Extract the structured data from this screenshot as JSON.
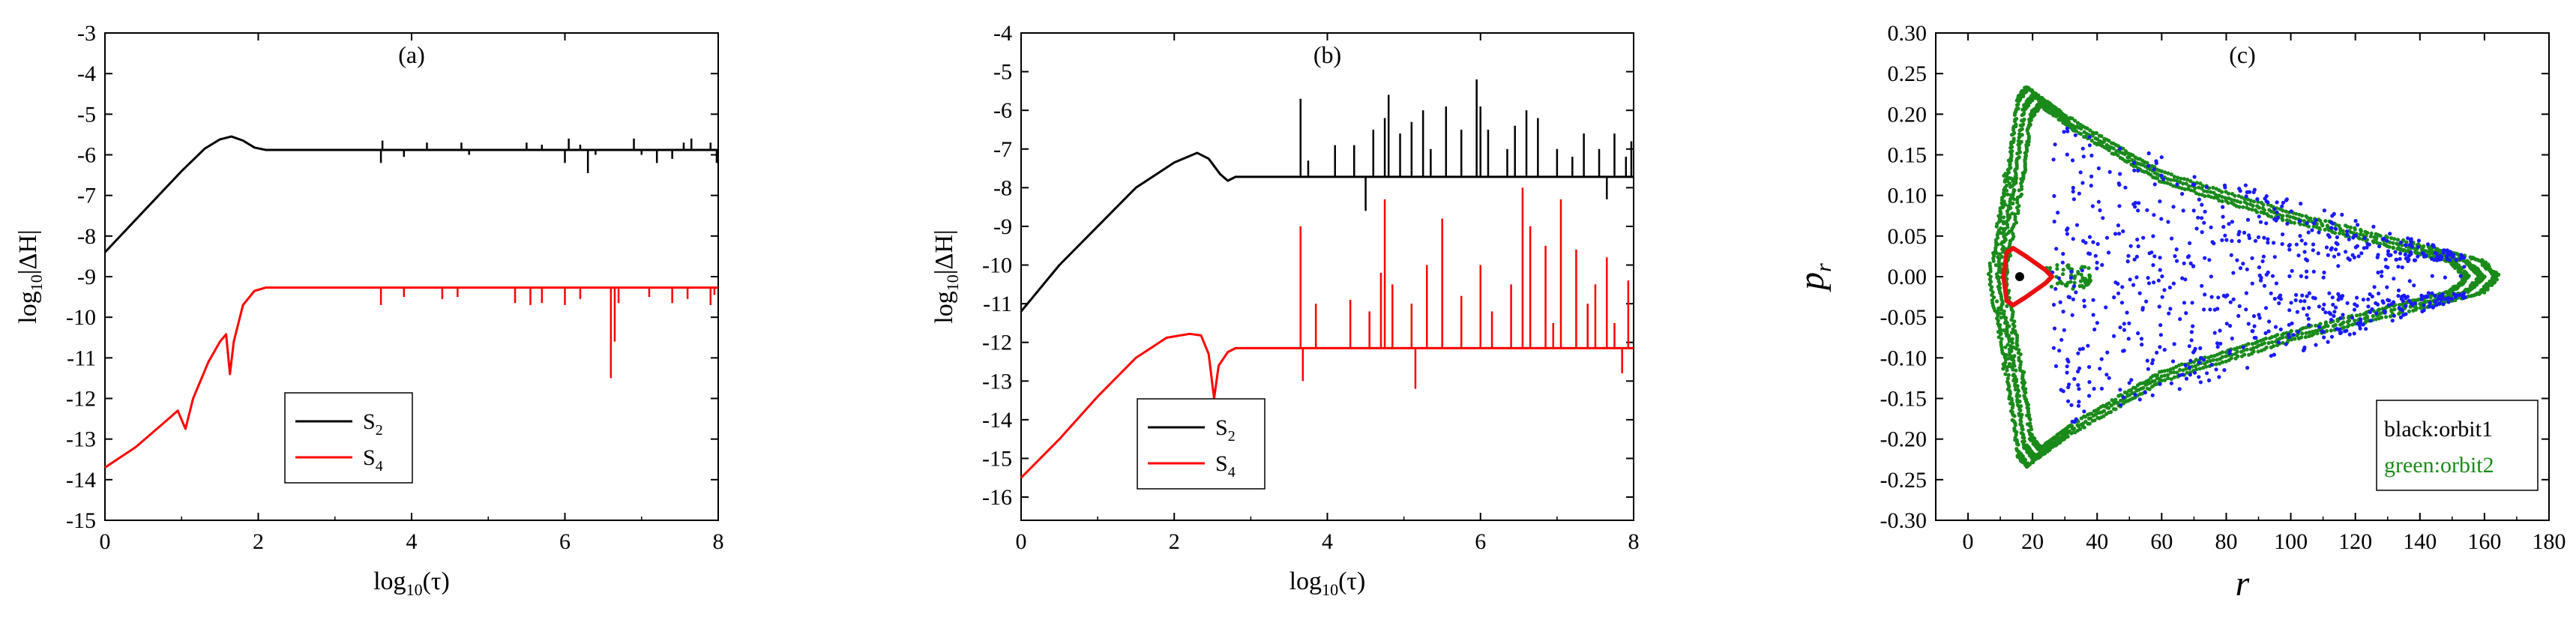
{
  "chart_data": [
    {
      "type": "line",
      "panel_label": "(a)",
      "xlabel": "log10(τ)",
      "ylabel": "log10|ΔH|",
      "xlim": [
        0,
        8
      ],
      "ylim": [
        -15,
        -3
      ],
      "xticks": [
        0,
        2,
        4,
        6,
        8
      ],
      "yticks": [
        -15,
        -14,
        -13,
        -12,
        -11,
        -10,
        -9,
        -8,
        -7,
        -6,
        -5,
        -4,
        -3
      ],
      "legend_position": "lower-left",
      "series": [
        {
          "name": "S2",
          "color": "#000000",
          "points": [
            [
              0,
              -8.4
            ],
            [
              0.5,
              -7.4
            ],
            [
              1.0,
              -6.4
            ],
            [
              1.3,
              -5.85
            ],
            [
              1.5,
              -5.62
            ],
            [
              1.65,
              -5.55
            ],
            [
              1.8,
              -5.65
            ],
            [
              1.95,
              -5.82
            ],
            [
              2.1,
              -5.88
            ],
            [
              8,
              -5.88
            ]
          ],
          "spikes": [
            [
              3.6,
              -6.2
            ],
            [
              3.62,
              -5.65
            ],
            [
              3.9,
              -6.05
            ],
            [
              4.2,
              -5.7
            ],
            [
              4.65,
              -5.7
            ],
            [
              4.75,
              -6.0
            ],
            [
              5.5,
              -5.7
            ],
            [
              5.7,
              -5.75
            ],
            [
              6.0,
              -6.2
            ],
            [
              6.05,
              -5.6
            ],
            [
              6.2,
              -5.75
            ],
            [
              6.3,
              -6.45
            ],
            [
              6.4,
              -6.0
            ],
            [
              6.9,
              -5.6
            ],
            [
              7.0,
              -6.0
            ],
            [
              7.2,
              -6.2
            ],
            [
              7.4,
              -6.1
            ],
            [
              7.55,
              -5.7
            ],
            [
              7.65,
              -5.6
            ],
            [
              7.9,
              -5.7
            ],
            [
              7.98,
              -6.2
            ]
          ]
        },
        {
          "name": "S4",
          "color": "#ff0000",
          "points": [
            [
              0,
              -13.7
            ],
            [
              0.4,
              -13.2
            ],
            [
              0.8,
              -12.55
            ],
            [
              0.95,
              -12.3
            ],
            [
              1.05,
              -12.75
            ],
            [
              1.15,
              -12.0
            ],
            [
              1.35,
              -11.1
            ],
            [
              1.5,
              -10.6
            ],
            [
              1.58,
              -10.42
            ],
            [
              1.63,
              -11.4
            ],
            [
              1.68,
              -10.6
            ],
            [
              1.8,
              -9.7
            ],
            [
              1.95,
              -9.35
            ],
            [
              2.1,
              -9.27
            ],
            [
              8,
              -9.27
            ]
          ],
          "spikes": [
            [
              3.6,
              -9.7
            ],
            [
              3.9,
              -9.5
            ],
            [
              4.4,
              -9.55
            ],
            [
              4.6,
              -9.5
            ],
            [
              5.35,
              -9.65
            ],
            [
              5.55,
              -9.7
            ],
            [
              5.7,
              -9.65
            ],
            [
              6.0,
              -9.7
            ],
            [
              6.2,
              -9.55
            ],
            [
              6.6,
              -11.5
            ],
            [
              6.65,
              -10.6
            ],
            [
              6.7,
              -9.65
            ],
            [
              7.1,
              -9.5
            ],
            [
              7.4,
              -9.65
            ],
            [
              7.6,
              -9.55
            ],
            [
              7.9,
              -9.7
            ],
            [
              7.95,
              -9.45
            ]
          ]
        }
      ]
    },
    {
      "type": "line",
      "panel_label": "(b)",
      "xlabel": "log10(τ)",
      "ylabel": "log10|ΔH|",
      "xlim": [
        0,
        8
      ],
      "ylim": [
        -16.6,
        -4
      ],
      "xticks": [
        0,
        2,
        4,
        6,
        8
      ],
      "yticks": [
        -16,
        -15,
        -14,
        -13,
        -12,
        -11,
        -10,
        -9,
        -8,
        -7,
        -6,
        -5,
        -4
      ],
      "legend_position": "lower-left",
      "series": [
        {
          "name": "S2",
          "color": "#000000",
          "points": [
            [
              0,
              -11.2
            ],
            [
              0.5,
              -10.0
            ],
            [
              1.0,
              -9.0
            ],
            [
              1.5,
              -8.0
            ],
            [
              2.0,
              -7.35
            ],
            [
              2.3,
              -7.1
            ],
            [
              2.45,
              -7.25
            ],
            [
              2.6,
              -7.65
            ],
            [
              2.7,
              -7.82
            ],
            [
              2.8,
              -7.72
            ],
            [
              8,
              -7.72
            ]
          ],
          "spikes": [
            [
              3.65,
              -5.7
            ],
            [
              3.75,
              -7.3
            ],
            [
              4.1,
              -6.9
            ],
            [
              4.35,
              -6.9
            ],
            [
              4.5,
              -8.6
            ],
            [
              4.6,
              -6.5
            ],
            [
              4.75,
              -6.2
            ],
            [
              4.8,
              -5.6
            ],
            [
              4.95,
              -6.6
            ],
            [
              5.1,
              -6.3
            ],
            [
              5.25,
              -6.0
            ],
            [
              5.35,
              -7.0
            ],
            [
              5.55,
              -5.9
            ],
            [
              5.75,
              -6.5
            ],
            [
              5.95,
              -5.2
            ],
            [
              6.0,
              -5.9
            ],
            [
              6.1,
              -6.5
            ],
            [
              6.35,
              -7.0
            ],
            [
              6.45,
              -6.4
            ],
            [
              6.6,
              -6.0
            ],
            [
              6.75,
              -6.2
            ],
            [
              7.0,
              -7.0
            ],
            [
              7.2,
              -7.2
            ],
            [
              7.35,
              -6.6
            ],
            [
              7.55,
              -7.0
            ],
            [
              7.65,
              -8.3
            ],
            [
              7.75,
              -6.6
            ],
            [
              7.9,
              -7.2
            ],
            [
              7.97,
              -6.8
            ]
          ]
        },
        {
          "name": "S4",
          "color": "#ff0000",
          "points": [
            [
              0,
              -15.5
            ],
            [
              0.5,
              -14.5
            ],
            [
              1.0,
              -13.4
            ],
            [
              1.5,
              -12.4
            ],
            [
              1.9,
              -11.88
            ],
            [
              2.2,
              -11.78
            ],
            [
              2.35,
              -11.82
            ],
            [
              2.45,
              -12.3
            ],
            [
              2.52,
              -13.45
            ],
            [
              2.58,
              -12.6
            ],
            [
              2.7,
              -12.25
            ],
            [
              2.8,
              -12.15
            ],
            [
              8,
              -12.15
            ]
          ],
          "spikes": [
            [
              3.65,
              -9.0
            ],
            [
              3.68,
              -13.0
            ],
            [
              3.85,
              -11.0
            ],
            [
              4.3,
              -10.9
            ],
            [
              4.55,
              -11.2
            ],
            [
              4.7,
              -10.2
            ],
            [
              4.75,
              -8.3
            ],
            [
              4.85,
              -10.5
            ],
            [
              5.1,
              -11.0
            ],
            [
              5.15,
              -13.2
            ],
            [
              5.3,
              -10.0
            ],
            [
              5.5,
              -8.8
            ],
            [
              5.75,
              -10.8
            ],
            [
              6.0,
              -10.0
            ],
            [
              6.15,
              -11.2
            ],
            [
              6.4,
              -10.5
            ],
            [
              6.55,
              -8.0
            ],
            [
              6.65,
              -9.0
            ],
            [
              6.85,
              -9.5
            ],
            [
              6.95,
              -11.5
            ],
            [
              7.05,
              -8.3
            ],
            [
              7.25,
              -9.6
            ],
            [
              7.4,
              -11.0
            ],
            [
              7.5,
              -10.5
            ],
            [
              7.65,
              -9.8
            ],
            [
              7.75,
              -11.5
            ],
            [
              7.85,
              -12.8
            ],
            [
              7.93,
              -10.4
            ]
          ]
        }
      ]
    },
    {
      "type": "scatter",
      "panel_label": "(c)",
      "xlabel": "r",
      "ylabel": "p_r",
      "xlim": [
        -10,
        180
      ],
      "ylim": [
        -0.3,
        0.3
      ],
      "xticks": [
        0,
        20,
        40,
        60,
        80,
        100,
        120,
        140,
        160,
        180
      ],
      "yticks": [
        -0.3,
        -0.25,
        -0.2,
        -0.15,
        -0.1,
        -0.05,
        0.0,
        0.05,
        0.1,
        0.15,
        0.2,
        0.25,
        0.3
      ],
      "legend": [
        "black:orbit1",
        "green:orbit2"
      ],
      "legend_position": "lower-right",
      "series": [
        {
          "name": "orbit1",
          "color": "#000000",
          "center": [
            16,
            0.0
          ],
          "shape": "small filled dot"
        },
        {
          "name": "red orbit",
          "color": "#e81010",
          "shape": "closed triangular loop",
          "outline": [
            [
              12,
              0.03
            ],
            [
              14,
              0.035
            ],
            [
              18,
              0.025
            ],
            [
              24,
              0.008
            ],
            [
              26,
              0.0
            ],
            [
              24,
              -0.008
            ],
            [
              18,
              -0.025
            ],
            [
              14,
              -0.035
            ],
            [
              12,
              -0.03
            ],
            [
              11,
              0.0
            ]
          ]
        },
        {
          "name": "orbit2",
          "color": "#1a8a1a",
          "shape": "triangular chaotic torus band",
          "outer": [
            [
              12,
              0.13
            ],
            [
              15,
              0.22
            ],
            [
              18,
              0.235
            ],
            [
              30,
              0.2
            ],
            [
              60,
              0.13
            ],
            [
              100,
              0.08
            ],
            [
              140,
              0.04
            ],
            [
              160,
              0.02
            ],
            [
              165,
              0.0
            ],
            [
              160,
              -0.02
            ],
            [
              140,
              -0.04
            ],
            [
              100,
              -0.08
            ],
            [
              60,
              -0.13
            ],
            [
              30,
              -0.2
            ],
            [
              18,
              -0.235
            ],
            [
              15,
              -0.22
            ],
            [
              12,
              -0.13
            ],
            [
              6,
              0.0
            ]
          ]
        },
        {
          "name": "blue orbit",
          "color": "#1a1aff",
          "shape": "chaotic scatter inside band",
          "region_r": [
            25,
            155
          ],
          "region_pr": [
            -0.19,
            0.19
          ]
        }
      ]
    }
  ]
}
